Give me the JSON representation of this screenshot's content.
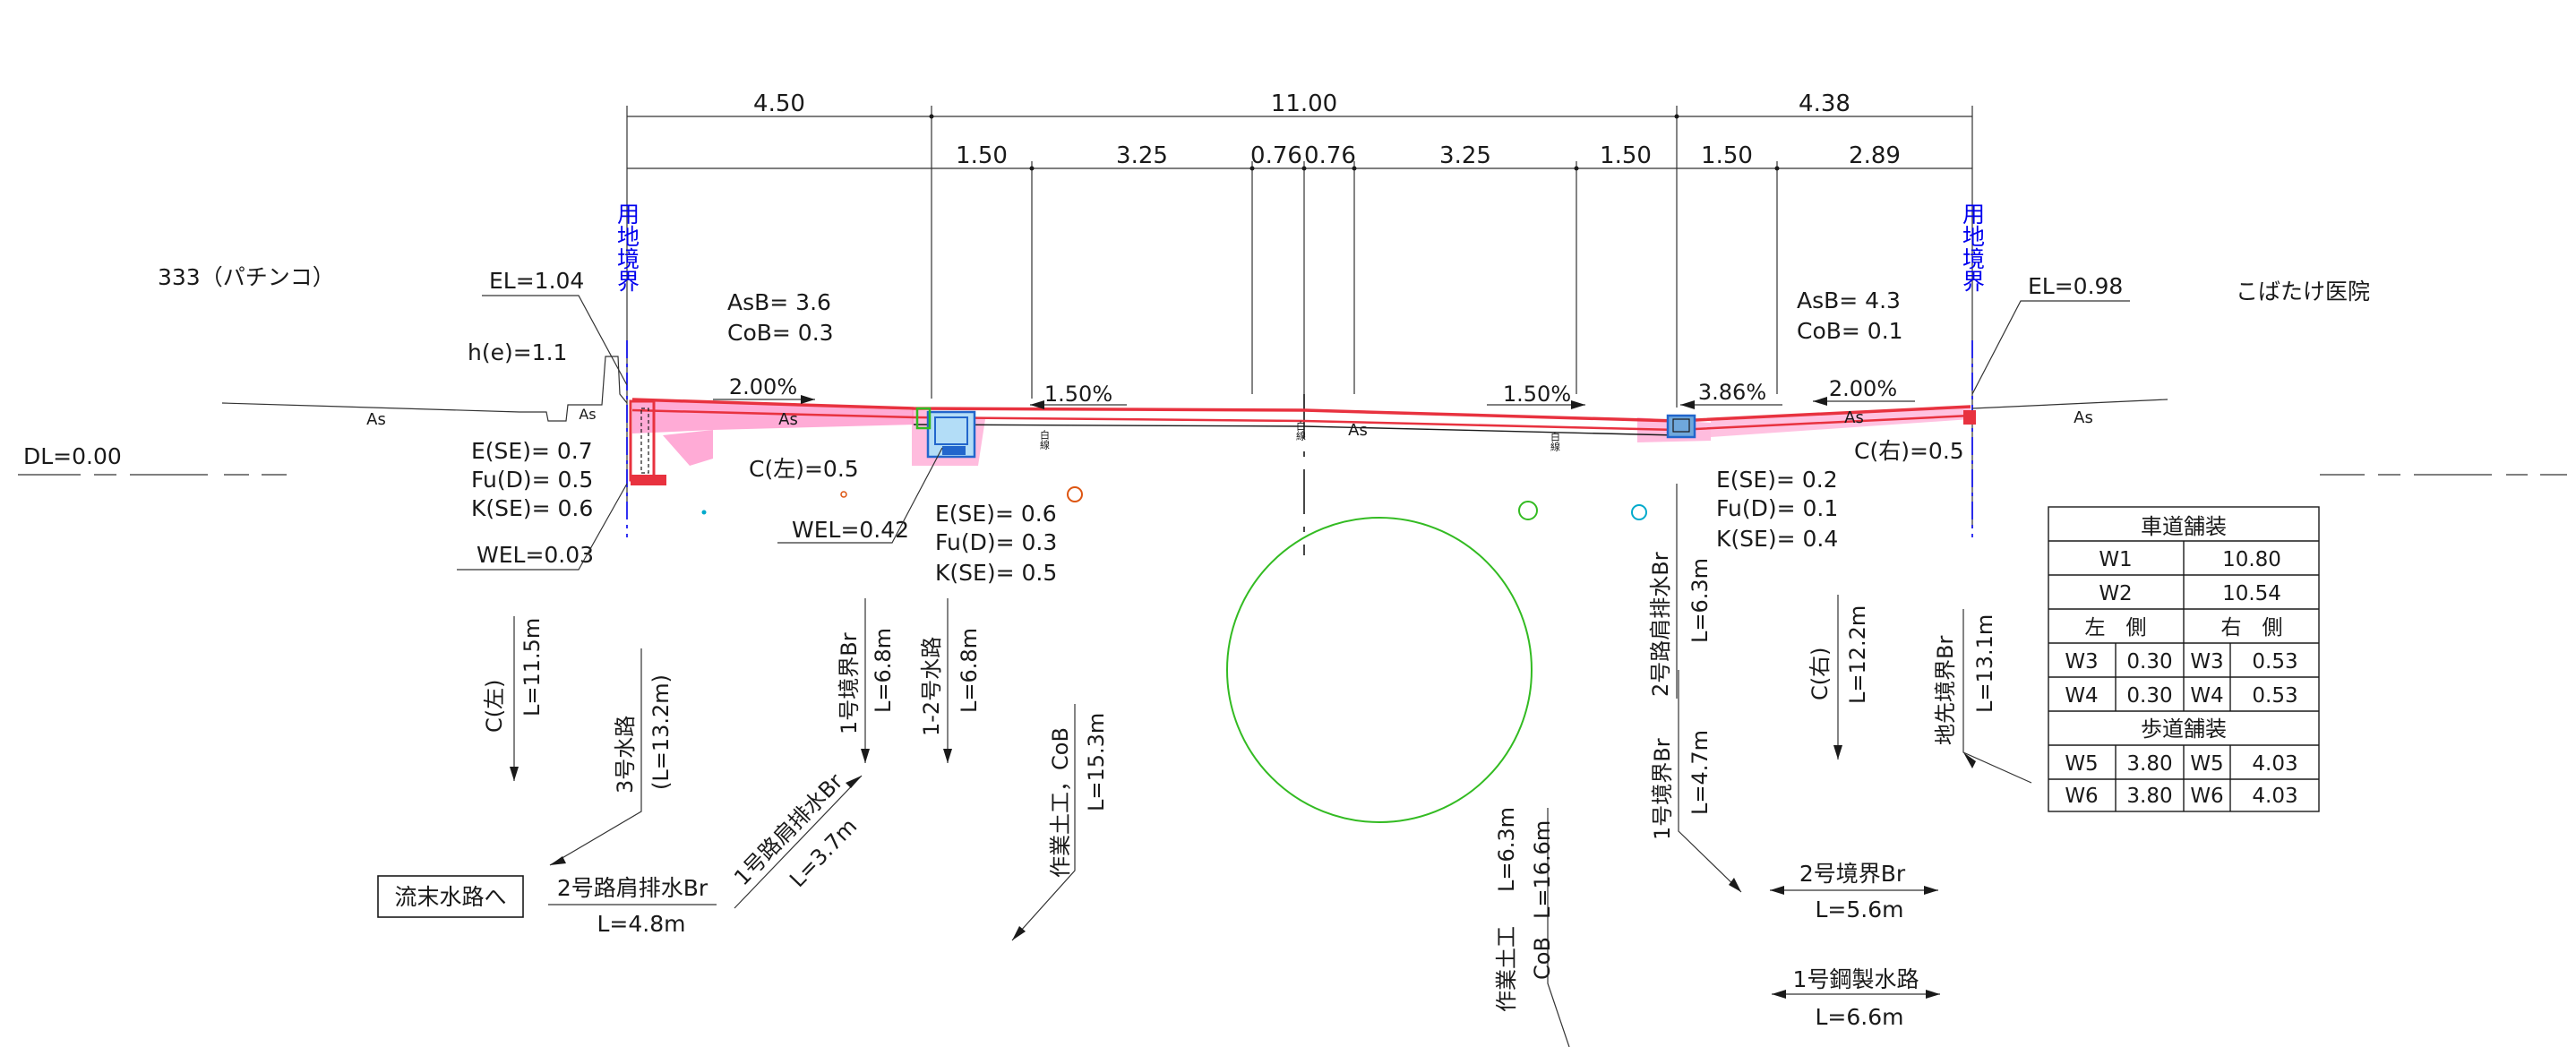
{
  "colors": {
    "line": "#1a1a1a",
    "pavement": "#e8323f",
    "fill": "#ff8fc8",
    "boundary": "#0000ee",
    "green": "#33bb22",
    "orange": "#dd5511",
    "cyan": "#00aacc",
    "blue": "#2266cc"
  },
  "dimensions": {
    "top": [
      "4.50",
      "11.00",
      "4.38"
    ],
    "second": [
      "1.50",
      "3.25",
      "0.76",
      "0.76",
      "3.25",
      "1.50",
      "1.50",
      "2.89"
    ]
  },
  "boundary": {
    "left": "用地境界",
    "right": "用地境界"
  },
  "left": {
    "site": "333（パチンコ）",
    "el": "EL=1.04",
    "he": "h(e)=1.1",
    "dl": "DL=0.00",
    "soil": [
      "E(SE)= 0.7",
      "Fu(D)= 0.5",
      "K(SE)= 0.6"
    ],
    "wel": "WEL=0.03",
    "asb": "AsB= 3.6",
    "cob": "CoB= 0.3",
    "slope": "2.00%",
    "c": "C(左)=0.5",
    "wel2": "WEL=0.42"
  },
  "center": {
    "slope_left": "1.50%",
    "slope_right": "1.50%",
    "soil": [
      "E(SE)= 0.6",
      "Fu(D)= 0.3",
      "K(SE)= 0.5"
    ],
    "as": "As",
    "white_line": "白線"
  },
  "right": {
    "site": "こばたけ医院",
    "el": "EL=0.98",
    "asb": "AsB= 4.3",
    "cob": "CoB= 0.1",
    "slope1": "3.86%",
    "slope2": "2.00%",
    "c": "C(右)=0.5",
    "soil": [
      "E(SE)= 0.2",
      "Fu(D)= 0.1",
      "K(SE)= 0.4"
    ]
  },
  "surface_labels": [
    "As",
    "As",
    "As",
    "As",
    "As"
  ],
  "callouts": {
    "c_left": "C(左)",
    "c_left_l": "L=11.5m",
    "w3": "3号水路",
    "w3_l": "(L=13.2m)",
    "sink": "流末水路へ",
    "d2": "2号路肩排水Br",
    "d2_l": "L=4.8m",
    "d1": "1号路肩排水Br",
    "d1_l": "L=3.7m",
    "b1": "1号境界Br",
    "b1_l": "L=6.8m",
    "w12": "1-2号水路",
    "w12_l": "L=6.8m",
    "work1": "作業土工，CoB",
    "work1_l": "L=15.3m",
    "work2": "作業土工",
    "work2_l": "L=6.3m",
    "work2_cob": "CoB",
    "work2_cob_l": "L=16.6m",
    "rd2": "2号路肩排水Br",
    "rd2_l": "L=6.3m",
    "rb1": "1号境界Br",
    "rb1_l": "L=4.7m",
    "c_right": "C(右)",
    "c_right_l": "L=12.2m",
    "lb": "地先境界Br",
    "lb_l": "L=13.1m",
    "b2": "2号境界Br",
    "b2_l": "L=5.6m",
    "steel": "1号鋼製水路",
    "steel_l": "L=6.6m"
  },
  "pave_table": {
    "title": "車道舗装",
    "w1": [
      "W1",
      "10.80"
    ],
    "w2": [
      "W2",
      "10.54"
    ],
    "side_left": "左　側",
    "side_right": "右　側",
    "w3": [
      "W3",
      "0.30",
      "W3",
      "0.53"
    ],
    "w4": [
      "W4",
      "0.30",
      "W4",
      "0.53"
    ],
    "walk_title": "歩道舗装",
    "w5": [
      "W5",
      "3.80",
      "W5",
      "4.03"
    ],
    "w6": [
      "W6",
      "3.80",
      "W6",
      "4.03"
    ]
  }
}
